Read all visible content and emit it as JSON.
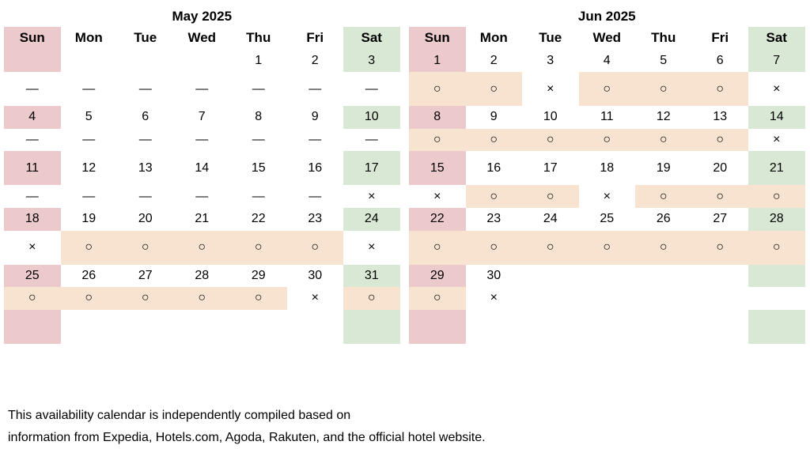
{
  "footer": {
    "line1": "This availability calendar is independently compiled based on",
    "line2": "information from Expedia, Hotels.com, Agoda, Rakuten, and the official hotel website."
  },
  "colors": {
    "sunday": "#ecc9ca",
    "saturday": "#d9e8d5",
    "available": "#f7e3cf"
  },
  "months": [
    {
      "title": "May 2025",
      "weekdays": [
        "Sun",
        "Mon",
        "Tue",
        "Wed",
        "Thu",
        "Fri",
        "Sat"
      ],
      "weeks": [
        {
          "dates": [
            "",
            "",
            "",
            "",
            "1",
            "2",
            "3"
          ],
          "status": [
            "—",
            "—",
            "—",
            "—",
            "—",
            "—",
            "—"
          ]
        },
        {
          "dates": [
            "4",
            "5",
            "6",
            "7",
            "8",
            "9",
            "10"
          ],
          "status": [
            "—",
            "—",
            "—",
            "—",
            "—",
            "—",
            "—"
          ]
        },
        {
          "dates": [
            "11",
            "12",
            "13",
            "14",
            "15",
            "16",
            "17"
          ],
          "status": [
            "—",
            "—",
            "—",
            "—",
            "—",
            "—",
            "×"
          ]
        },
        {
          "dates": [
            "18",
            "19",
            "20",
            "21",
            "22",
            "23",
            "24"
          ],
          "status": [
            "×",
            "○",
            "○",
            "○",
            "○",
            "○",
            "×"
          ]
        },
        {
          "dates": [
            "25",
            "26",
            "27",
            "28",
            "29",
            "30",
            "31"
          ],
          "status": [
            "○",
            "○",
            "○",
            "○",
            "○",
            "×",
            "○"
          ]
        }
      ]
    },
    {
      "title": "Jun 2025",
      "weekdays": [
        "Sun",
        "Mon",
        "Tue",
        "Wed",
        "Thu",
        "Fri",
        "Sat"
      ],
      "weeks": [
        {
          "dates": [
            "1",
            "2",
            "3",
            "4",
            "5",
            "6",
            "7"
          ],
          "status": [
            "○",
            "○",
            "×",
            "○",
            "○",
            "○",
            "×"
          ]
        },
        {
          "dates": [
            "8",
            "9",
            "10",
            "11",
            "12",
            "13",
            "14"
          ],
          "status": [
            "○",
            "○",
            "○",
            "○",
            "○",
            "○",
            "×"
          ]
        },
        {
          "dates": [
            "15",
            "16",
            "17",
            "18",
            "19",
            "20",
            "21"
          ],
          "status": [
            "×",
            "○",
            "○",
            "×",
            "○",
            "○",
            "○"
          ]
        },
        {
          "dates": [
            "22",
            "23",
            "24",
            "25",
            "26",
            "27",
            "28"
          ],
          "status": [
            "○",
            "○",
            "○",
            "○",
            "○",
            "○",
            "○"
          ]
        },
        {
          "dates": [
            "29",
            "30",
            "",
            "",
            "",
            "",
            ""
          ],
          "status": [
            "○",
            "×",
            "",
            "",
            "",
            "",
            ""
          ]
        }
      ]
    }
  ]
}
